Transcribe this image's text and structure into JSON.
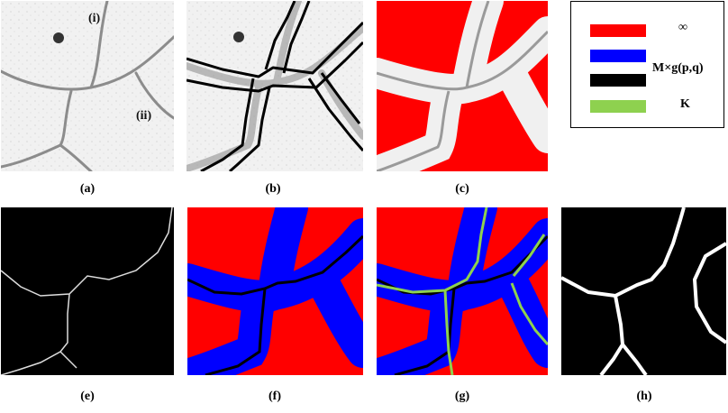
{
  "panels": {
    "a": {
      "caption": "(a)",
      "label_i": "(i)",
      "label_ii": "(ii)"
    },
    "b": {
      "caption": "(b)"
    },
    "c": {
      "caption": "(c)"
    },
    "e": {
      "caption": "(e)"
    },
    "f": {
      "caption": "(f)"
    },
    "g": {
      "caption": "(g)"
    },
    "h": {
      "caption": "(h)"
    }
  },
  "legend": {
    "items": [
      {
        "label": "∞",
        "color": "#ff0000"
      },
      {
        "label": "M×g(p,q)",
        "color": "#0000ff"
      },
      {
        "label": "",
        "color": "#000000"
      },
      {
        "label": "K",
        "color": "#8ed14f"
      }
    ]
  },
  "colors": {
    "infinity_red": "#ff0000",
    "band_blue": "#0000ff",
    "path_black": "#000000",
    "k_green": "#8ed14f",
    "micrograph_bg": "#f2f2f2",
    "boundary_gray": "#8a8a8a"
  }
}
